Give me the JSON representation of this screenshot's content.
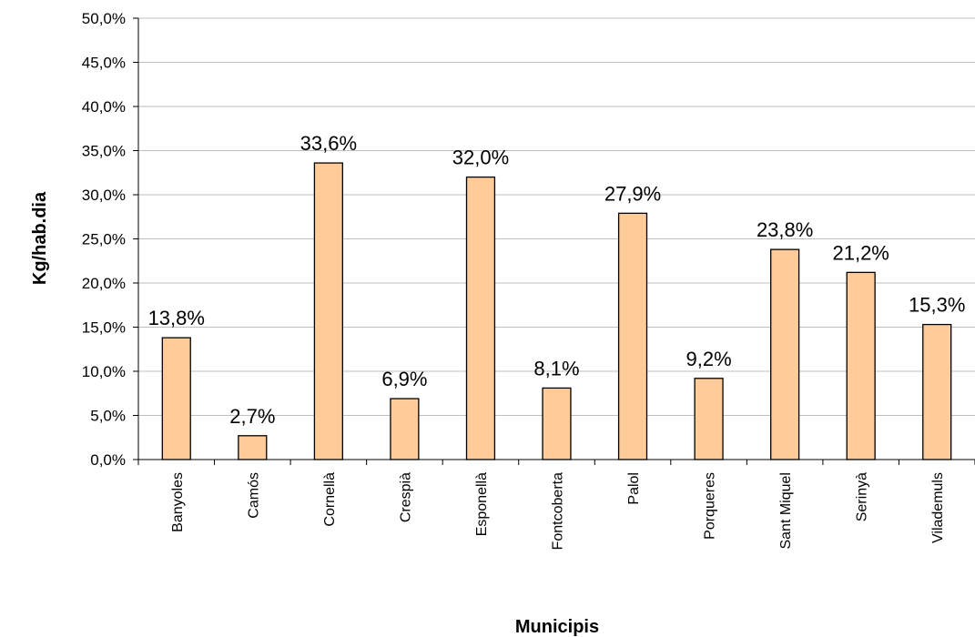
{
  "chart_data": {
    "type": "bar",
    "title": "",
    "xlabel": "Municipis",
    "ylabel": "Kg/hab.dia",
    "ylim": [
      0,
      50
    ],
    "ytick_step": 5,
    "yticks": [
      "0,0%",
      "5,0%",
      "10,0%",
      "15,0%",
      "20,0%",
      "25,0%",
      "30,0%",
      "35,0%",
      "40,0%",
      "45,0%",
      "50,0%"
    ],
    "grid": true,
    "legend": "none",
    "categories": [
      "Banyoles",
      "Camós",
      "Cornellà",
      "Crespià",
      "Esponellà",
      "Fontcoberta",
      "Palol",
      "Porqueres",
      "Sant Miquel",
      "Serinyà",
      "Vilademuls"
    ],
    "values": [
      13.8,
      2.7,
      33.6,
      6.9,
      32.0,
      8.1,
      27.9,
      9.2,
      23.8,
      21.2,
      15.3
    ],
    "data_labels": [
      "13,8%",
      "2,7%",
      "33,6%",
      "6,9%",
      "32,0%",
      "8,1%",
      "27,9%",
      "9,2%",
      "23,8%",
      "21,2%",
      "15,3%"
    ],
    "colors": {
      "bar_fill": "#FFCC99",
      "bar_stroke": "#000000",
      "grid": "#BFBFBF",
      "axis": "#000000"
    }
  }
}
